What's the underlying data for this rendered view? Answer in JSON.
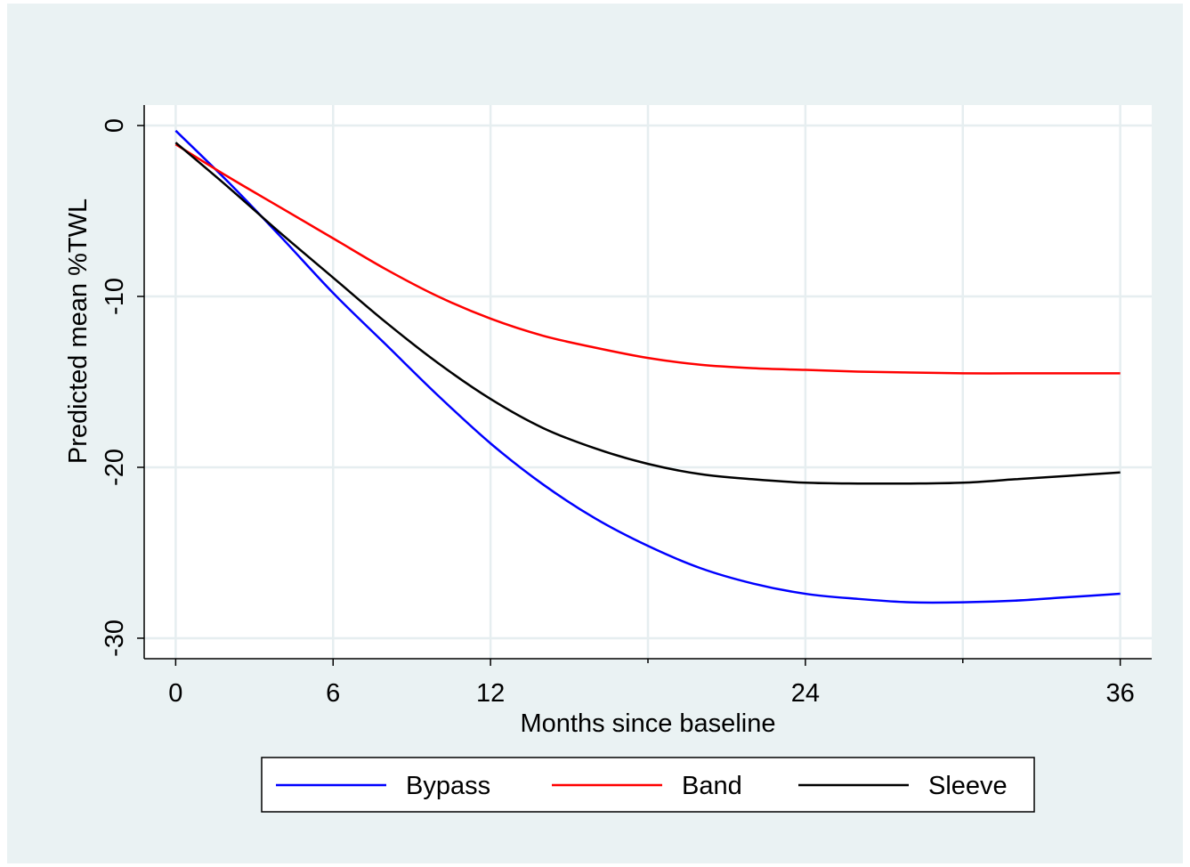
{
  "chart_data": {
    "type": "line",
    "title": "",
    "xlabel": "Months since baseline",
    "ylabel": "Predicted mean %TWL",
    "xlim": [
      -1.2,
      37.2
    ],
    "ylim": [
      -31.2,
      1.2
    ],
    "x_ticks": [
      0,
      6,
      12,
      24,
      36
    ],
    "x_tick_labels": [
      "0",
      "6",
      "12",
      "24",
      "36"
    ],
    "x_minor_ticks": [
      18,
      30
    ],
    "y_ticks": [
      0,
      -10,
      -20,
      -30
    ],
    "y_tick_labels": [
      "0",
      "-10",
      "-20",
      "-30"
    ],
    "grid": true,
    "legend_position": "bottom",
    "series": [
      {
        "name": "Bypass",
        "color": "#0000ff",
        "x": [
          0,
          2,
          4,
          6,
          8,
          10,
          12,
          14,
          16,
          18,
          20,
          22,
          24,
          26,
          28,
          30,
          32,
          34,
          36
        ],
        "y": [
          -0.3,
          -3.3,
          -6.5,
          -9.8,
          -12.8,
          -15.8,
          -18.6,
          -21.0,
          -23.0,
          -24.6,
          -25.9,
          -26.8,
          -27.4,
          -27.7,
          -27.9,
          -27.9,
          -27.8,
          -27.6,
          -27.4
        ]
      },
      {
        "name": "Band",
        "color": "#ff0000",
        "x": [
          0,
          2,
          4,
          6,
          8,
          10,
          12,
          14,
          16,
          18,
          20,
          22,
          24,
          26,
          28,
          30,
          32,
          34,
          36
        ],
        "y": [
          -1.1,
          -3.0,
          -4.8,
          -6.6,
          -8.4,
          -10.0,
          -11.3,
          -12.3,
          -13.0,
          -13.6,
          -14.0,
          -14.2,
          -14.3,
          -14.4,
          -14.45,
          -14.5,
          -14.5,
          -14.5,
          -14.5
        ]
      },
      {
        "name": "Sleeve",
        "color": "#000000",
        "x": [
          0,
          2,
          4,
          6,
          8,
          10,
          12,
          14,
          16,
          18,
          20,
          22,
          24,
          26,
          28,
          30,
          32,
          34,
          36
        ],
        "y": [
          -1.0,
          -3.6,
          -6.3,
          -8.9,
          -11.5,
          -13.9,
          -16.0,
          -17.7,
          -18.9,
          -19.8,
          -20.4,
          -20.7,
          -20.9,
          -20.95,
          -20.95,
          -20.9,
          -20.7,
          -20.5,
          -20.3
        ]
      }
    ]
  }
}
